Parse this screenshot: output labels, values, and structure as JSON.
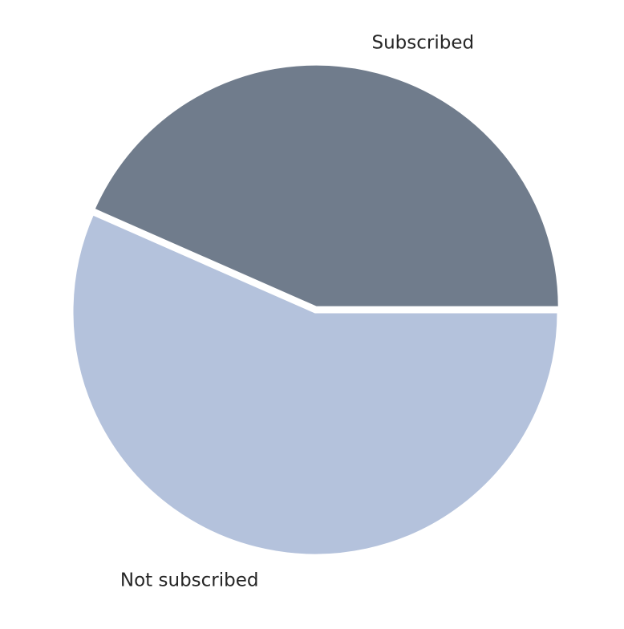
{
  "chart_data": {
    "type": "pie",
    "categories": [
      "Subscribed",
      "Not subscribed"
    ],
    "values": [
      43.4,
      56.6
    ],
    "colors": [
      "#707c8c",
      "#b4c2dc"
    ],
    "edge_color": "#ffffff",
    "start_angle_deg": 0,
    "direction": "counterclockwise",
    "title": "",
    "legend": "none"
  }
}
